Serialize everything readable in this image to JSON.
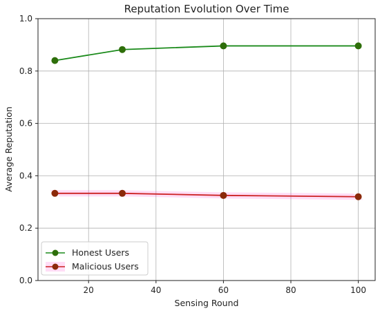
{
  "chart_data": {
    "type": "line",
    "title": "Reputation Evolution Over Time",
    "xlabel": "Sensing Round",
    "ylabel": "Average Reputation",
    "xlim": [
      5,
      105
    ],
    "ylim": [
      0.0,
      1.0
    ],
    "xticks": [
      "20",
      "40",
      "60",
      "80",
      "100"
    ],
    "yticks": [
      "0.0",
      "0.2",
      "0.4",
      "0.6",
      "0.8",
      "1.0"
    ],
    "grid": true,
    "legend_position": "lower-left",
    "series": [
      {
        "name": "Honest Users",
        "color": "#1a8a1a",
        "marker_color": "#2e6e0a",
        "x": [
          10,
          30,
          60,
          100
        ],
        "y": [
          0.84,
          0.882,
          0.896,
          0.896
        ]
      },
      {
        "name": "Malicious Users",
        "color": "#cc2222",
        "marker_color": "#8b2a0a",
        "band_color": "#ff44cc",
        "band_halfwidth": 0.012,
        "x": [
          10,
          30,
          60,
          100
        ],
        "y": [
          0.333,
          0.333,
          0.325,
          0.32
        ]
      }
    ]
  }
}
